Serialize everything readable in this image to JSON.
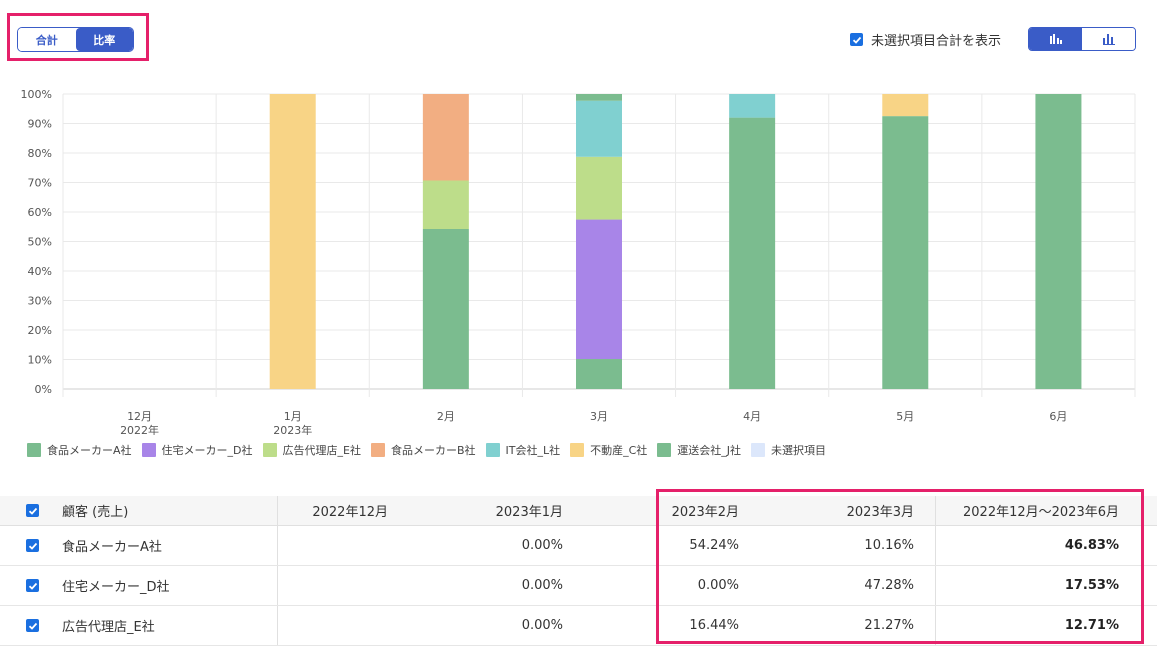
{
  "mode_toggle": {
    "total_label": "合計",
    "ratio_label": "比率",
    "active": "ratio"
  },
  "show_unselected": {
    "label": "未選択項目合計を表示",
    "checked": true
  },
  "chart_data": {
    "type": "bar",
    "stacked": true,
    "percent": true,
    "categories": [
      {
        "line1": "12月",
        "line2": "2022年"
      },
      {
        "line1": "1月",
        "line2": "2023年"
      },
      {
        "line1": "2月",
        "line2": ""
      },
      {
        "line1": "3月",
        "line2": ""
      },
      {
        "line1": "4月",
        "line2": ""
      },
      {
        "line1": "5月",
        "line2": ""
      },
      {
        "line1": "6月",
        "line2": ""
      }
    ],
    "yticks": [
      "0%",
      "10%",
      "20%",
      "30%",
      "40%",
      "50%",
      "60%",
      "70%",
      "80%",
      "90%",
      "100%"
    ],
    "ylim": [
      0,
      100
    ],
    "series": [
      {
        "name": "食品メーカーA社",
        "color": "#7bbc8f",
        "values": [
          0,
          0,
          54.24,
          10.16,
          92,
          92.5,
          100
        ]
      },
      {
        "name": "住宅メーカー_D社",
        "color": "#a885e8",
        "values": [
          0,
          0,
          0,
          47.28,
          0,
          0,
          0
        ]
      },
      {
        "name": "広告代理店_E社",
        "color": "#bddd8a",
        "values": [
          0,
          0,
          16.44,
          21.27,
          0,
          0,
          0
        ]
      },
      {
        "name": "食品メーカーB社",
        "color": "#f2ae82",
        "values": [
          0,
          0,
          29.32,
          0,
          0,
          0,
          0
        ]
      },
      {
        "name": "IT会社_L社",
        "color": "#80d0d0",
        "values": [
          0,
          0,
          0,
          19,
          8,
          0,
          0
        ]
      },
      {
        "name": "不動産_C社",
        "color": "#f8d486",
        "values": [
          0,
          100,
          0,
          0,
          0,
          7.5,
          0
        ]
      },
      {
        "name": "運送会社_J社",
        "color": "#7bbc8f",
        "values": [
          0,
          0,
          0,
          2.29,
          0,
          0,
          0
        ]
      },
      {
        "name": "未選択項目",
        "color": "#dce7fb",
        "values": [
          0,
          0,
          0,
          0,
          0,
          0,
          0
        ]
      }
    ]
  },
  "table": {
    "headers": {
      "name": "顧客 (売上)",
      "c1": "2022年12月",
      "c2": "2023年1月",
      "c3": "2023年2月",
      "c4": "2023年3月",
      "c5": "2022年12月〜2023年6月"
    },
    "rows": [
      {
        "name": "食品メーカーA社",
        "c1": "",
        "c2": "0.00%",
        "c3": "54.24%",
        "c4": "10.16%",
        "c5": "46.83%"
      },
      {
        "name": "住宅メーカー_D社",
        "c1": "",
        "c2": "0.00%",
        "c3": "0.00%",
        "c4": "47.28%",
        "c5": "17.53%"
      },
      {
        "name": "広告代理店_E社",
        "c1": "",
        "c2": "0.00%",
        "c3": "16.44%",
        "c4": "21.27%",
        "c5": "12.71%"
      }
    ]
  }
}
